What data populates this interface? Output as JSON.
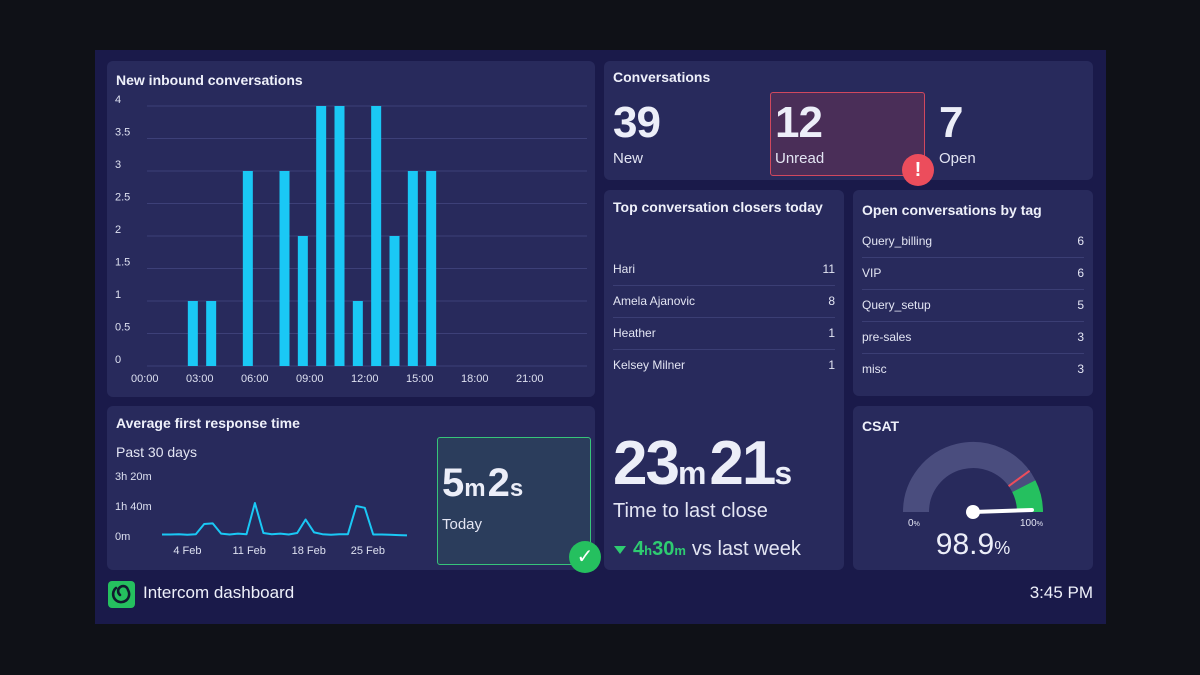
{
  "footer": {
    "app_name": "Intercom dashboard",
    "time": "3:45 PM"
  },
  "inbound": {
    "title": "New inbound conversations",
    "chart_data": {
      "type": "bar",
      "title": "New inbound conversations",
      "y_ticks": [
        "4",
        "3.5",
        "3",
        "2.5",
        "2",
        "1.5",
        "1",
        "0.5",
        "0"
      ],
      "x_ticks": [
        "00:00",
        "03:00",
        "06:00",
        "09:00",
        "12:00",
        "15:00",
        "18:00",
        "21:00"
      ],
      "ylim": [
        0,
        4
      ],
      "xlim": [
        0,
        24
      ],
      "bar_color": "#1ac8f5",
      "x": [
        2,
        3,
        5,
        7,
        8,
        9,
        10,
        11,
        12,
        13,
        14,
        15
      ],
      "values": [
        1,
        1,
        3,
        3,
        2,
        4,
        4,
        1,
        4,
        2,
        3,
        3
      ]
    }
  },
  "conversations": {
    "title": "Conversations",
    "new_value": "39",
    "new_label": "New",
    "unread_value": "12",
    "unread_label": "Unread",
    "open_value": "7",
    "open_label": "Open",
    "alert_glyph": "!",
    "alert_color": "#ec4d5c"
  },
  "closers": {
    "title": "Top conversation closers today",
    "items": [
      {
        "name": "Hari",
        "value": "11"
      },
      {
        "name": "Amela Ajanovic",
        "value": "8"
      },
      {
        "name": "Heather",
        "value": "1"
      },
      {
        "name": "Kelsey Milner",
        "value": "1"
      }
    ],
    "last_close": {
      "minutes": "23",
      "m_unit": "m",
      "seconds": "21",
      "s_unit": "s",
      "label": "Time to last close"
    },
    "trend": {
      "icon": "down-triangle-icon",
      "hours": "4",
      "h_unit": "h",
      "minutes": "30",
      "m_unit": "m",
      "suffix": "vs last week",
      "color": "#2ecc71"
    }
  },
  "tags": {
    "title": "Open conversations by tag",
    "items": [
      {
        "name": "Query_billing",
        "value": "6"
      },
      {
        "name": "VIP",
        "value": "6"
      },
      {
        "name": "Query_setup",
        "value": "5"
      },
      {
        "name": "pre-sales",
        "value": "3"
      },
      {
        "name": "misc",
        "value": "3"
      }
    ]
  },
  "response": {
    "title": "Average first response time",
    "subtitle": "Past 30 days",
    "value_minutes": "5",
    "m_unit": "m",
    "value_seconds": "2",
    "s_unit": "s",
    "value_label": "Today",
    "check_glyph": "✓",
    "check_color": "#25c05f",
    "chart_data": {
      "type": "line",
      "y_ticks": [
        "3h 20m",
        "1h 40m",
        "0m"
      ],
      "x_ticks": [
        "4 Feb",
        "11 Feb",
        "18 Feb",
        "25 Feb"
      ],
      "ylim_minutes": [
        0,
        200
      ],
      "x_days": [
        0,
        1,
        2,
        3,
        4,
        5,
        6,
        7,
        8,
        9,
        10,
        11,
        12,
        13,
        14,
        15,
        16,
        17,
        18,
        19,
        20,
        21,
        22,
        23,
        24,
        25,
        26,
        27,
        28,
        29
      ],
      "values_minutes": [
        5,
        5,
        6,
        4,
        6,
        40,
        42,
        8,
        5,
        8,
        6,
        110,
        10,
        6,
        8,
        5,
        10,
        55,
        12,
        6,
        4,
        6,
        6,
        100,
        94,
        5,
        5,
        4,
        3,
        2
      ],
      "line_color": "#1ac8f5"
    }
  },
  "csat": {
    "title": "CSAT",
    "min_label": "0",
    "min_unit": "%",
    "max_label": "100",
    "max_unit": "%",
    "value": "98.9",
    "unit": "%",
    "score": 98.9,
    "target": 80,
    "good_from": 85,
    "good_color": "#25c05f",
    "target_color": "#ec4d5c"
  }
}
